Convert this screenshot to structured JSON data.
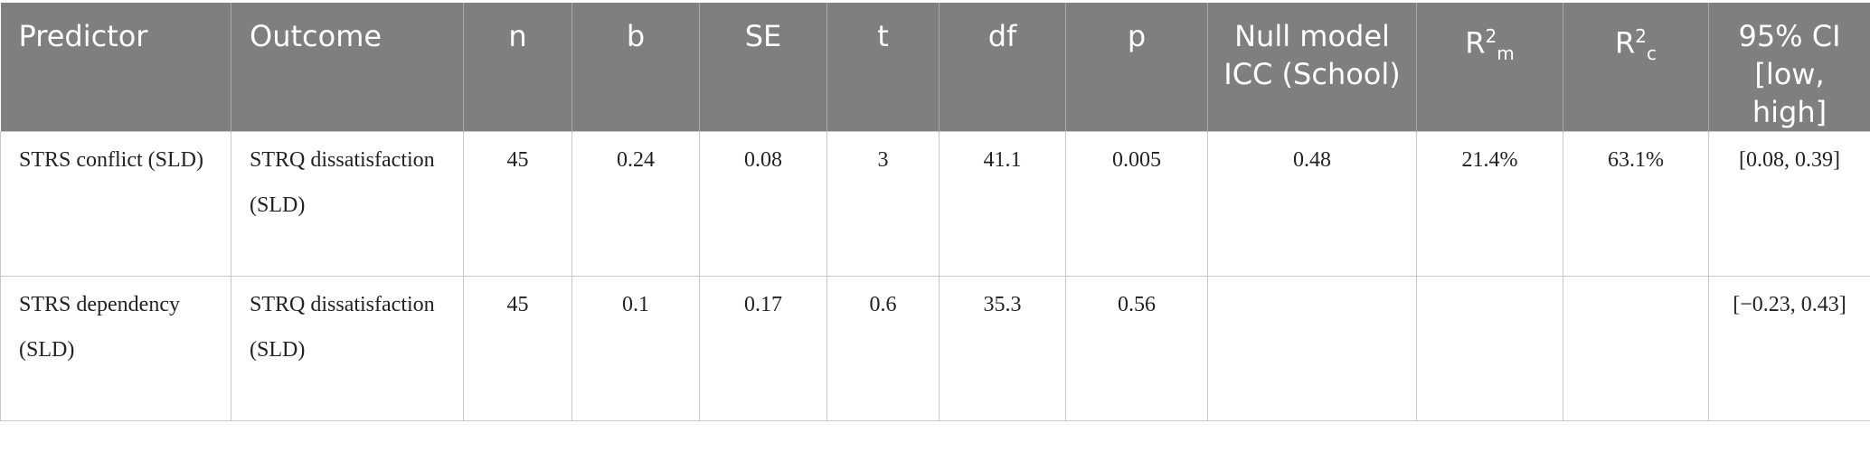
{
  "table": {
    "columns": [
      "Predictor",
      "Outcome",
      "n",
      "b",
      "SE",
      "t",
      "df",
      "p",
      "Null model ICC (School)",
      {
        "base": "R",
        "sup": "2",
        "sub": "m"
      },
      {
        "base": "R",
        "sup": "2",
        "sub": "c"
      },
      "95% CI [low, high]"
    ],
    "rows": [
      [
        "STRS conflict (SLD)",
        "STRQ dissatisfaction (SLD)",
        "45",
        "0.24",
        "0.08",
        "3",
        "41.1",
        "0.005",
        "0.48",
        "21.4%",
        "63.1%",
        "[0.08, 0.39]"
      ],
      [
        "STRS dependency (SLD)",
        "STRQ dissatisfaction (SLD)",
        "45",
        "0.1",
        "0.17",
        "0.6",
        "35.3",
        "0.56",
        null,
        null,
        null,
        "[−0.23, 0.43]"
      ]
    ]
  }
}
